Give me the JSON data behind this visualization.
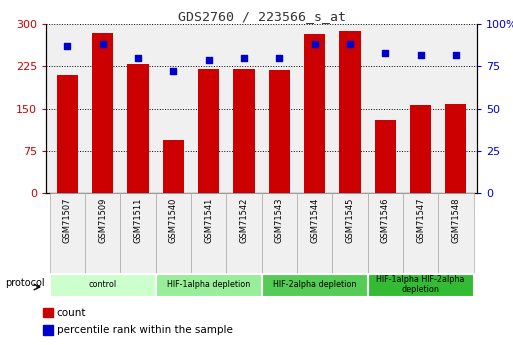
{
  "title": "GDS2760 / 223566_s_at",
  "samples": [
    "GSM71507",
    "GSM71509",
    "GSM71511",
    "GSM71540",
    "GSM71541",
    "GSM71542",
    "GSM71543",
    "GSM71544",
    "GSM71545",
    "GSM71546",
    "GSM71547",
    "GSM71548"
  ],
  "counts": [
    210,
    285,
    230,
    95,
    220,
    220,
    218,
    283,
    288,
    130,
    157,
    158
  ],
  "percentiles": [
    87,
    88,
    80,
    72,
    79,
    80,
    80,
    88,
    88,
    83,
    82,
    82
  ],
  "bar_color": "#cc0000",
  "dot_color": "#0000cc",
  "ylim_left": [
    0,
    300
  ],
  "ylim_right": [
    0,
    100
  ],
  "yticks_left": [
    0,
    75,
    150,
    225,
    300
  ],
  "yticks_right": [
    0,
    25,
    50,
    75,
    100
  ],
  "ytick_labels_right": [
    "0",
    "25",
    "50",
    "75",
    "100%"
  ],
  "groups": [
    {
      "label": "control",
      "start": 0,
      "end": 3,
      "color": "#ccffcc"
    },
    {
      "label": "HIF-1alpha depletion",
      "start": 3,
      "end": 6,
      "color": "#99ee99"
    },
    {
      "label": "HIF-2alpha depletion",
      "start": 6,
      "end": 9,
      "color": "#55cc55"
    },
    {
      "label": "HIF-1alpha HIF-2alpha\ndepletion",
      "start": 9,
      "end": 12,
      "color": "#33bb33"
    }
  ],
  "protocol_label": "protocol",
  "legend_count_label": "count",
  "legend_percentile_label": "percentile rank within the sample",
  "title_color": "#333333",
  "left_axis_color": "#cc0000",
  "right_axis_color": "#0000cc",
  "bg_color": "#f0f0f0"
}
